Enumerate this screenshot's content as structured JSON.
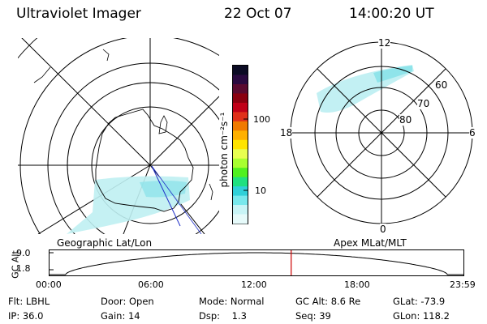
{
  "header": {
    "instrument": "Ultraviolet Imager",
    "date": "22 Oct 07",
    "time": "14:00:20 UT"
  },
  "left_panel": {
    "caption": "Geographic Lat/Lon"
  },
  "right_panel": {
    "caption": "Apex MLat/MLT",
    "mlt_labels": [
      "12",
      "18",
      "6",
      "0"
    ],
    "mlat_labels": [
      "60",
      "70",
      "80"
    ]
  },
  "colorbar": {
    "unit_label": "photon cm⁻²s⁻¹",
    "ticks": [
      "100",
      "10"
    ],
    "colors": [
      "#0b0b24",
      "#2a0a40",
      "#5a0a30",
      "#8a0010",
      "#c00018",
      "#e0301a",
      "#f07a00",
      "#ffb000",
      "#ffe400",
      "#e8ff50",
      "#a8ff30",
      "#50f020",
      "#20e080",
      "#30d0d8",
      "#78e8ec",
      "#c8f4f6",
      "#e6fafa"
    ]
  },
  "altitude_plot": {
    "ylabel": "GC Alt",
    "y_ticks": [
      "9.0",
      "1.8"
    ],
    "x_ticks": [
      "00:00",
      "06:00",
      "12:00",
      "18:00",
      "23:59"
    ],
    "current_time_fraction": 0.5835,
    "marker_color": "#cc0000"
  },
  "status": {
    "row1": {
      "filter": "Flt: LBHL",
      "door": "Door: Open",
      "mode": "Mode: Normal",
      "gc_alt": "GC Alt: 8.6 Re",
      "glat": "GLat: -73.9"
    },
    "row2": {
      "ip": "IP: 36.0",
      "gain": "Gain: 14",
      "dsp": "Dsp:    1.3",
      "seq": "Seq: 39",
      "glon": "GLon: 118.2"
    }
  }
}
